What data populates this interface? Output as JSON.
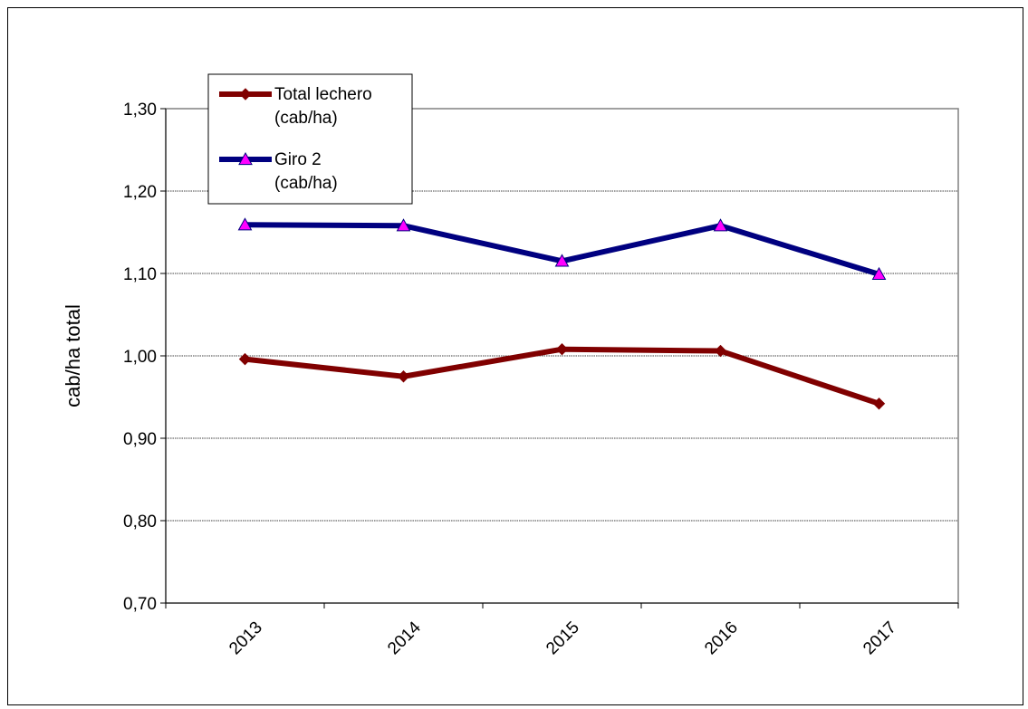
{
  "chart_data": {
    "type": "line",
    "title": "",
    "xlabel": "",
    "ylabel": "cab/ha total",
    "categories": [
      "2013",
      "2014",
      "2015",
      "2016",
      "2017"
    ],
    "ylim": [
      0.7,
      1.3
    ],
    "yticks": [
      "0,70",
      "0,80",
      "0,90",
      "1,00",
      "1,10",
      "1,20",
      "1,30"
    ],
    "ytick_values": [
      0.7,
      0.8,
      0.9,
      1.0,
      1.1,
      1.2,
      1.3
    ],
    "grid": true,
    "legend_position": "top-left",
    "series": [
      {
        "name": "Total lechero (cab/ha)",
        "name_lines": [
          "Total lechero",
          "(cab/ha)"
        ],
        "values": [
          0.996,
          0.975,
          1.008,
          1.006,
          0.942
        ],
        "color": "#800000",
        "marker": "diamond",
        "marker_color": "#800000"
      },
      {
        "name": "Giro 2 (cab/ha)",
        "name_lines": [
          "Giro 2",
          "(cab/ha)"
        ],
        "values": [
          1.159,
          1.158,
          1.115,
          1.158,
          1.099
        ],
        "color": "#000080",
        "marker": "triangle",
        "marker_color": "#ff00ff"
      }
    ]
  }
}
